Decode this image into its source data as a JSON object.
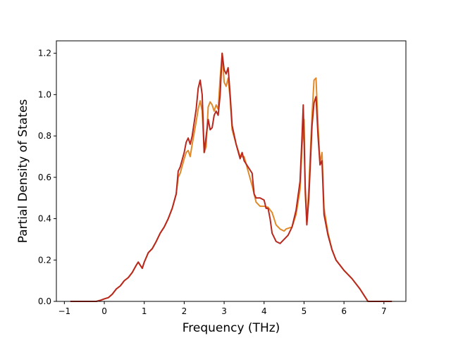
{
  "chart_data": {
    "type": "line",
    "title": "",
    "xlabel": "Frequency (THz)",
    "ylabel": "Partial Density of States",
    "xlim": [
      -1.2,
      7.55
    ],
    "ylim": [
      0.0,
      1.26
    ],
    "xticks": [
      -1,
      0,
      1,
      2,
      3,
      4,
      5,
      6,
      7
    ],
    "yticks": [
      0.0,
      0.2,
      0.4,
      0.6,
      0.8,
      1.0,
      1.2
    ],
    "xtick_labels": [
      "−1",
      "0",
      "1",
      "2",
      "3",
      "4",
      "5",
      "6",
      "7"
    ],
    "ytick_labels": [
      "0.0",
      "0.2",
      "0.4",
      "0.6",
      "0.8",
      "1.0",
      "1.2"
    ],
    "grid": false,
    "legend": "none",
    "series": [
      {
        "color": "#e08a2a",
        "points": [
          [
            -0.85,
            0.0
          ],
          [
            -0.2,
            0.0
          ],
          [
            -0.1,
            0.005
          ],
          [
            0.0,
            0.012
          ],
          [
            0.1,
            0.018
          ],
          [
            0.2,
            0.035
          ],
          [
            0.3,
            0.06
          ],
          [
            0.4,
            0.075
          ],
          [
            0.5,
            0.1
          ],
          [
            0.6,
            0.115
          ],
          [
            0.7,
            0.14
          ],
          [
            0.8,
            0.175
          ],
          [
            0.85,
            0.19
          ],
          [
            0.9,
            0.175
          ],
          [
            0.95,
            0.16
          ],
          [
            1.0,
            0.19
          ],
          [
            1.1,
            0.235
          ],
          [
            1.2,
            0.255
          ],
          [
            1.3,
            0.29
          ],
          [
            1.4,
            0.33
          ],
          [
            1.5,
            0.36
          ],
          [
            1.6,
            0.4
          ],
          [
            1.7,
            0.45
          ],
          [
            1.8,
            0.52
          ],
          [
            1.85,
            0.6
          ],
          [
            1.9,
            0.62
          ],
          [
            2.0,
            0.69
          ],
          [
            2.05,
            0.72
          ],
          [
            2.1,
            0.73
          ],
          [
            2.15,
            0.7
          ],
          [
            2.2,
            0.76
          ],
          [
            2.3,
            0.87
          ],
          [
            2.35,
            0.93
          ],
          [
            2.4,
            0.97
          ],
          [
            2.45,
            0.92
          ],
          [
            2.5,
            0.72
          ],
          [
            2.55,
            0.75
          ],
          [
            2.6,
            0.94
          ],
          [
            2.65,
            0.965
          ],
          [
            2.7,
            0.95
          ],
          [
            2.75,
            0.92
          ],
          [
            2.8,
            0.95
          ],
          [
            2.85,
            0.93
          ],
          [
            2.9,
            1.08
          ],
          [
            2.95,
            1.2
          ],
          [
            3.0,
            1.06
          ],
          [
            3.05,
            1.04
          ],
          [
            3.1,
            1.08
          ],
          [
            3.15,
            0.98
          ],
          [
            3.2,
            0.83
          ],
          [
            3.3,
            0.76
          ],
          [
            3.4,
            0.7
          ],
          [
            3.5,
            0.7
          ],
          [
            3.6,
            0.63
          ],
          [
            3.7,
            0.56
          ],
          [
            3.8,
            0.48
          ],
          [
            3.9,
            0.46
          ],
          [
            4.0,
            0.46
          ],
          [
            4.1,
            0.455
          ],
          [
            4.2,
            0.43
          ],
          [
            4.3,
            0.37
          ],
          [
            4.4,
            0.35
          ],
          [
            4.5,
            0.34
          ],
          [
            4.55,
            0.35
          ],
          [
            4.7,
            0.36
          ],
          [
            4.8,
            0.42
          ],
          [
            4.9,
            0.54
          ],
          [
            4.95,
            0.75
          ],
          [
            5.0,
            0.88
          ],
          [
            5.03,
            0.52
          ],
          [
            5.07,
            0.38
          ],
          [
            5.12,
            0.55
          ],
          [
            5.2,
            0.9
          ],
          [
            5.25,
            1.07
          ],
          [
            5.3,
            1.08
          ],
          [
            5.35,
            0.85
          ],
          [
            5.4,
            0.67
          ],
          [
            5.45,
            0.72
          ],
          [
            5.5,
            0.45
          ],
          [
            5.6,
            0.33
          ],
          [
            5.7,
            0.25
          ],
          [
            5.8,
            0.2
          ],
          [
            6.0,
            0.15
          ],
          [
            6.2,
            0.11
          ],
          [
            6.4,
            0.06
          ],
          [
            6.5,
            0.03
          ],
          [
            6.6,
            0.0
          ],
          [
            7.2,
            0.0
          ]
        ]
      },
      {
        "color": "#b8281e",
        "points": [
          [
            -0.85,
            0.0
          ],
          [
            -0.2,
            0.0
          ],
          [
            -0.1,
            0.005
          ],
          [
            0.0,
            0.012
          ],
          [
            0.1,
            0.018
          ],
          [
            0.2,
            0.035
          ],
          [
            0.3,
            0.06
          ],
          [
            0.4,
            0.075
          ],
          [
            0.5,
            0.1
          ],
          [
            0.6,
            0.115
          ],
          [
            0.7,
            0.14
          ],
          [
            0.8,
            0.175
          ],
          [
            0.85,
            0.19
          ],
          [
            0.9,
            0.175
          ],
          [
            0.95,
            0.16
          ],
          [
            1.0,
            0.19
          ],
          [
            1.1,
            0.235
          ],
          [
            1.2,
            0.255
          ],
          [
            1.3,
            0.29
          ],
          [
            1.4,
            0.33
          ],
          [
            1.5,
            0.36
          ],
          [
            1.6,
            0.4
          ],
          [
            1.7,
            0.45
          ],
          [
            1.8,
            0.52
          ],
          [
            1.85,
            0.63
          ],
          [
            1.9,
            0.65
          ],
          [
            2.0,
            0.72
          ],
          [
            2.05,
            0.77
          ],
          [
            2.1,
            0.79
          ],
          [
            2.15,
            0.76
          ],
          [
            2.2,
            0.8
          ],
          [
            2.3,
            0.93
          ],
          [
            2.35,
            1.03
          ],
          [
            2.4,
            1.07
          ],
          [
            2.45,
            1.0
          ],
          [
            2.5,
            0.72
          ],
          [
            2.55,
            0.8
          ],
          [
            2.6,
            0.88
          ],
          [
            2.65,
            0.83
          ],
          [
            2.7,
            0.84
          ],
          [
            2.75,
            0.9
          ],
          [
            2.8,
            0.92
          ],
          [
            2.85,
            0.9
          ],
          [
            2.9,
            1.0
          ],
          [
            2.95,
            1.2
          ],
          [
            3.0,
            1.12
          ],
          [
            3.05,
            1.1
          ],
          [
            3.1,
            1.13
          ],
          [
            3.15,
            1.0
          ],
          [
            3.2,
            0.85
          ],
          [
            3.3,
            0.76
          ],
          [
            3.4,
            0.69
          ],
          [
            3.45,
            0.72
          ],
          [
            3.5,
            0.68
          ],
          [
            3.6,
            0.65
          ],
          [
            3.7,
            0.62
          ],
          [
            3.75,
            0.52
          ],
          [
            3.8,
            0.5
          ],
          [
            3.9,
            0.5
          ],
          [
            4.0,
            0.49
          ],
          [
            4.05,
            0.45
          ],
          [
            4.1,
            0.45
          ],
          [
            4.15,
            0.4
          ],
          [
            4.2,
            0.33
          ],
          [
            4.3,
            0.29
          ],
          [
            4.4,
            0.28
          ],
          [
            4.5,
            0.3
          ],
          [
            4.6,
            0.32
          ],
          [
            4.7,
            0.36
          ],
          [
            4.8,
            0.44
          ],
          [
            4.9,
            0.58
          ],
          [
            4.95,
            0.8
          ],
          [
            4.98,
            0.95
          ],
          [
            5.03,
            0.55
          ],
          [
            5.07,
            0.37
          ],
          [
            5.12,
            0.5
          ],
          [
            5.2,
            0.85
          ],
          [
            5.25,
            0.96
          ],
          [
            5.3,
            0.99
          ],
          [
            5.35,
            0.8
          ],
          [
            5.4,
            0.66
          ],
          [
            5.45,
            0.68
          ],
          [
            5.5,
            0.42
          ],
          [
            5.6,
            0.32
          ],
          [
            5.7,
            0.25
          ],
          [
            5.8,
            0.2
          ],
          [
            6.0,
            0.15
          ],
          [
            6.2,
            0.11
          ],
          [
            6.4,
            0.06
          ],
          [
            6.5,
            0.03
          ],
          [
            6.6,
            0.0
          ],
          [
            7.2,
            0.0
          ]
        ]
      }
    ]
  }
}
